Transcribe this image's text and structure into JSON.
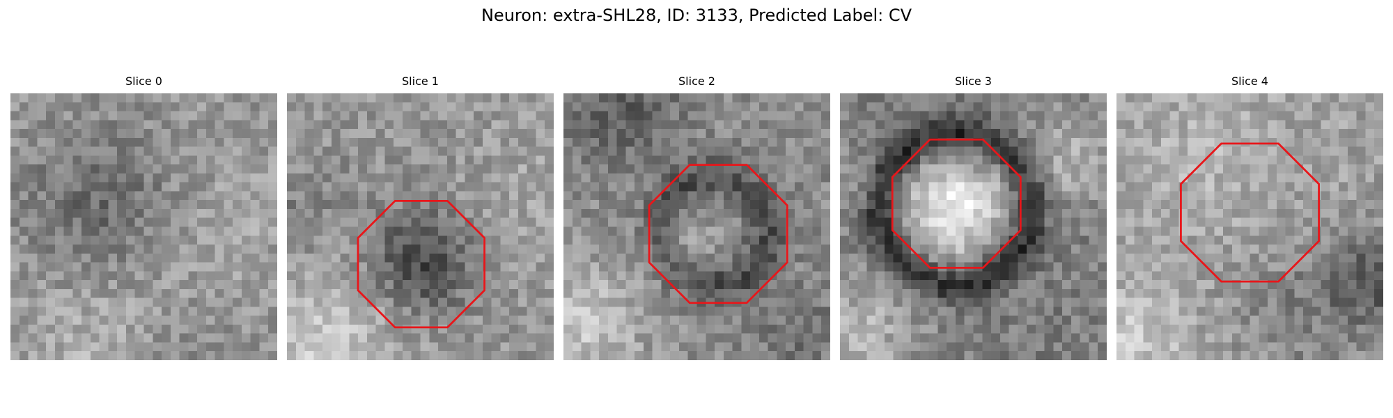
{
  "figure": {
    "title": "Neuron: extra-SHL28, ID: 3133, Predicted Label: CV"
  },
  "colors": {
    "outline": "#e8161a"
  },
  "panels": [
    {
      "title": "Slice 0",
      "has_outline": false
    },
    {
      "title": "Slice 1",
      "has_outline": true
    },
    {
      "title": "Slice 2",
      "has_outline": true
    },
    {
      "title": "Slice 3",
      "has_outline": true
    },
    {
      "title": "Slice 4",
      "has_outline": true
    }
  ]
}
